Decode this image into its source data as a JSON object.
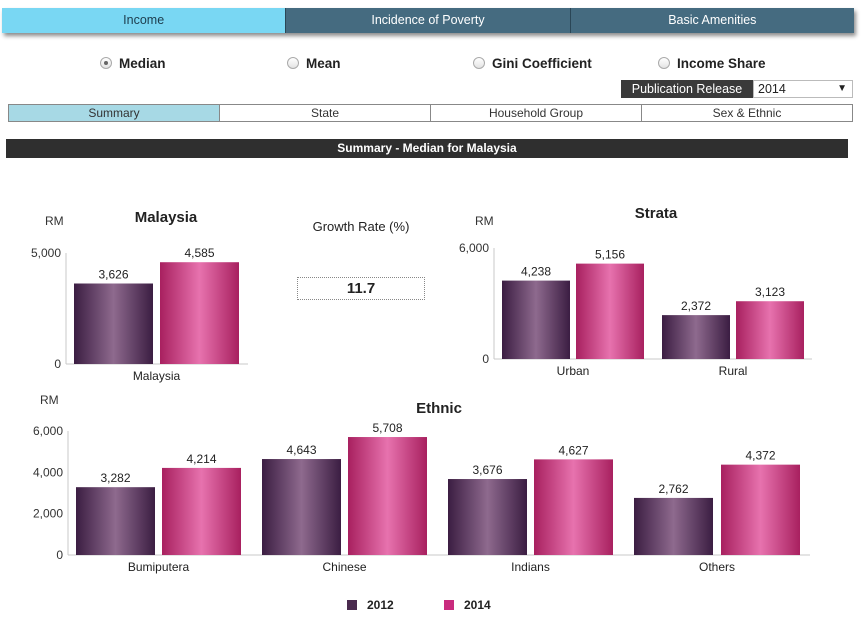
{
  "top_tabs": [
    {
      "label": "Income",
      "active": true
    },
    {
      "label": "Incidence of Poverty",
      "active": false
    },
    {
      "label": "Basic Amenities",
      "active": false
    }
  ],
  "radios": [
    {
      "label": "Median",
      "checked": true
    },
    {
      "label": "Mean",
      "checked": false
    },
    {
      "label": "Gini Coefficient",
      "checked": false
    },
    {
      "label": "Income Share",
      "checked": false
    }
  ],
  "publication": {
    "label": "Publication Release",
    "value": "2014"
  },
  "sub_tabs": [
    {
      "label": "Summary",
      "active": true
    },
    {
      "label": "State",
      "active": false
    },
    {
      "label": "Household Group",
      "active": false
    },
    {
      "label": "Sex & Ethnic",
      "active": false
    }
  ],
  "section_title": "Summary - Median for Malaysia",
  "growth": {
    "label": "Growth Rate (%)",
    "value": "11.7"
  },
  "legend": [
    {
      "name": "2012",
      "color": "#4a2a4e"
    },
    {
      "name": "2014",
      "color": "#c92b7e"
    }
  ],
  "colors": {
    "series_2012": "#4a2a4e",
    "series_2014": "#c92b7e"
  },
  "chart_data": [
    {
      "type": "bar",
      "title": "Malaysia",
      "unit": "RM",
      "categories": [
        "Malaysia"
      ],
      "series": [
        {
          "name": "2012",
          "values": [
            3626
          ],
          "labels": [
            "3,626"
          ]
        },
        {
          "name": "2014",
          "values": [
            4585
          ],
          "labels": [
            "4,585"
          ]
        }
      ],
      "ylim": [
        0,
        5000
      ],
      "yticks": [
        0,
        5000
      ],
      "ytick_labels": [
        "0",
        "5,000"
      ],
      "grid": false
    },
    {
      "type": "bar",
      "title": "Strata",
      "unit": "RM",
      "categories": [
        "Urban",
        "Rural"
      ],
      "series": [
        {
          "name": "2012",
          "values": [
            4238,
            2372
          ],
          "labels": [
            "4,238",
            "2,372"
          ]
        },
        {
          "name": "2014",
          "values": [
            5156,
            3123
          ],
          "labels": [
            "5,156",
            "3,123"
          ]
        }
      ],
      "ylim": [
        0,
        6000
      ],
      "yticks": [
        0,
        6000
      ],
      "ytick_labels": [
        "0",
        "6,000"
      ],
      "grid": false
    },
    {
      "type": "bar",
      "title": "Ethnic",
      "unit": "RM",
      "categories": [
        "Bumiputera",
        "Chinese",
        "Indians",
        "Others"
      ],
      "series": [
        {
          "name": "2012",
          "values": [
            3282,
            4643,
            3676,
            2762
          ],
          "labels": [
            "3,282",
            "4,643",
            "3,676",
            "2,762"
          ]
        },
        {
          "name": "2014",
          "values": [
            4214,
            5708,
            4627,
            4372
          ],
          "labels": [
            "4,214",
            "5,708",
            "4,627",
            "4,372"
          ]
        }
      ],
      "ylim": [
        0,
        6000
      ],
      "yticks": [
        0,
        2000,
        4000,
        6000
      ],
      "ytick_labels": [
        "0",
        "2,000",
        "4,000",
        "6,000"
      ],
      "grid": false,
      "legend": "bottom"
    }
  ]
}
